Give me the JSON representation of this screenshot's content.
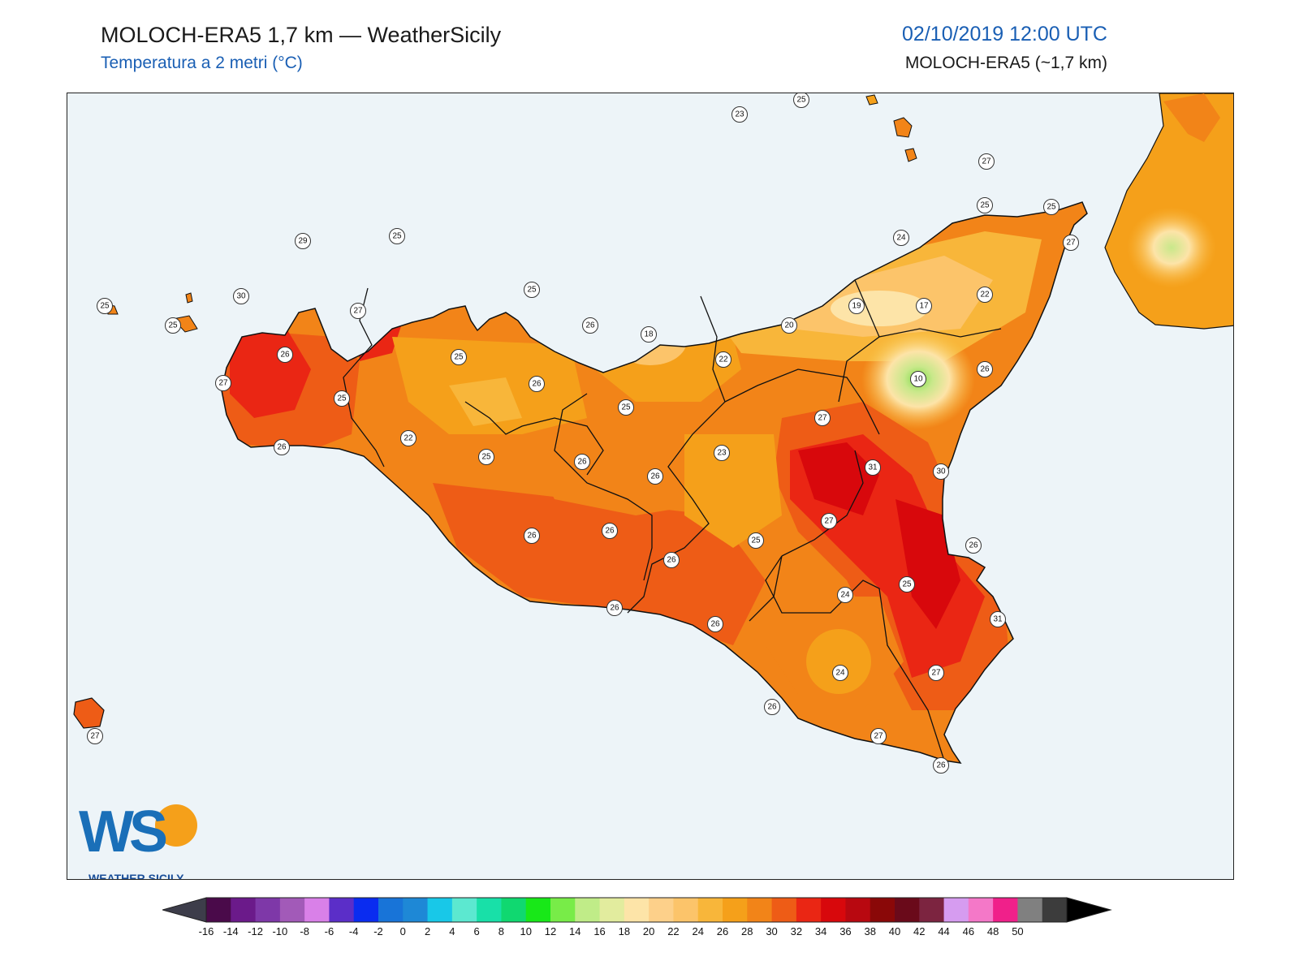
{
  "header": {
    "title": "MOLOCH-ERA5 1,7 km — WeatherSicily",
    "subtitle": "Temperatura a 2 metri (°C)",
    "datetime": "02/10/2019 12:00 UTC",
    "model": "MOLOCH-ERA5 (~1,7 km)"
  },
  "logo": {
    "letters": "WS",
    "name": "WEATHER SICILY"
  },
  "colors": {
    "sea": "#edf4f8",
    "temp_22": "#f8c84a",
    "temp_24": "#f5a623",
    "temp_26": "#f28a1c",
    "temp_28": "#ee5a14",
    "temp_30": "#e8230f",
    "temp_32": "#d4080a",
    "cold_spot": "#9be06a"
  },
  "stations": [
    {
      "v": "25"
    },
    {
      "v": "25"
    },
    {
      "v": "23"
    },
    {
      "v": "25"
    },
    {
      "v": "29"
    },
    {
      "v": "25"
    },
    {
      "v": "27"
    },
    {
      "v": "25"
    },
    {
      "v": "24"
    },
    {
      "v": "27"
    },
    {
      "v": "25"
    },
    {
      "v": "30"
    },
    {
      "v": "27"
    },
    {
      "v": "25"
    },
    {
      "v": "19"
    },
    {
      "v": "17"
    },
    {
      "v": "22"
    },
    {
      "v": "26"
    },
    {
      "v": "18"
    },
    {
      "v": "20"
    },
    {
      "v": "26"
    },
    {
      "v": "25"
    },
    {
      "v": "22"
    },
    {
      "v": "10"
    },
    {
      "v": "26"
    },
    {
      "v": "27"
    },
    {
      "v": "25"
    },
    {
      "v": "26"
    },
    {
      "v": "25"
    },
    {
      "v": "27"
    },
    {
      "v": "26"
    },
    {
      "v": "22"
    },
    {
      "v": "25"
    },
    {
      "v": "23"
    },
    {
      "v": "31"
    },
    {
      "v": "26"
    },
    {
      "v": "26"
    },
    {
      "v": "30"
    },
    {
      "v": "27"
    },
    {
      "v": "26"
    },
    {
      "v": "26"
    },
    {
      "v": "25"
    },
    {
      "v": "26"
    },
    {
      "v": "26"
    },
    {
      "v": "25"
    },
    {
      "v": "24"
    },
    {
      "v": "26"
    },
    {
      "v": "26"
    },
    {
      "v": "31"
    },
    {
      "v": "24"
    },
    {
      "v": "27"
    },
    {
      "v": "26"
    },
    {
      "v": "27"
    },
    {
      "v": "27"
    },
    {
      "v": "26"
    }
  ],
  "colorbar": {
    "ticks": [
      "-16",
      "-14",
      "-12",
      "-10",
      "-8",
      "-6",
      "-4",
      "-2",
      "0",
      "2",
      "4",
      "6",
      "8",
      "10",
      "12",
      "14",
      "16",
      "18",
      "20",
      "22",
      "24",
      "26",
      "28",
      "30",
      "32",
      "34",
      "36",
      "38",
      "40",
      "42",
      "44",
      "46",
      "48",
      "50"
    ],
    "colors": [
      "#3d3d4a",
      "#4a0a4a",
      "#6b1a8a",
      "#7e38a8",
      "#a25ab8",
      "#d980e8",
      "#5b2ec8",
      "#0a2cf0",
      "#1874d8",
      "#1e88d6",
      "#18c8e8",
      "#5ce8d0",
      "#18e0a8",
      "#10d870",
      "#18e818",
      "#78ec48",
      "#c0ec88",
      "#e2ec9e",
      "#fde4a8",
      "#fdd08a",
      "#fcc46a",
      "#f8b63a",
      "#f5a01a",
      "#f28418",
      "#ee5c16",
      "#ea2614",
      "#d8080c",
      "#b80810",
      "#8a0808",
      "#6a0a1a",
      "#7c2440",
      "#d69cf0",
      "#f478c8",
      "#f0208a",
      "#808080",
      "#3c3c3c",
      "#000000"
    ]
  }
}
